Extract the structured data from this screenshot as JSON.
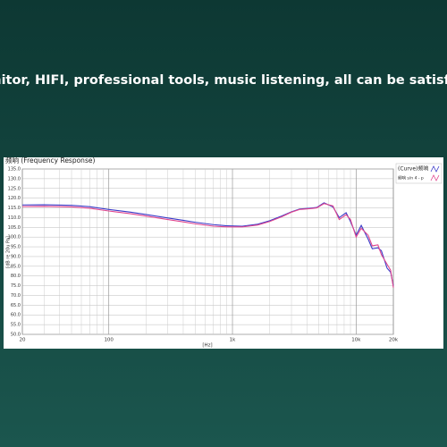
{
  "headline": "Monitor, HIFI, professional tools, music listening, all can be satisfied.",
  "chart_data": {
    "type": "line",
    "title": "频响 (Frequency Response)",
    "x_label": "[Hz]",
    "y_label": "[dB re 20u Pa]",
    "log_x": true,
    "grid": true,
    "x": [
      20,
      30,
      50,
      70,
      100,
      150,
      200,
      300,
      400,
      500,
      700,
      900,
      1200,
      1600,
      2000,
      2500,
      3000,
      3500,
      4200,
      4800,
      5500,
      6500,
      7300,
      8300,
      9000,
      10000,
      11000,
      12500,
      13500,
      15000,
      16000,
      17800,
      19000,
      20000
    ],
    "series": [
      {
        "name": "(Curve)频响",
        "color": "#3a3ac8",
        "values": [
          116.5,
          116.6,
          116.3,
          115.6,
          114.2,
          112.8,
          111.6,
          109.8,
          108.6,
          107.6,
          106.4,
          105.8,
          105.6,
          106.6,
          108.4,
          110.8,
          113,
          114.4,
          114.8,
          115.2,
          117.6,
          115.5,
          110,
          112.5,
          108,
          101,
          106,
          99,
          94,
          94.5,
          93,
          84,
          82,
          75
        ]
      },
      {
        "name": "频响 s/n 4 - p",
        "color": "#e0468e",
        "values": [
          115.7,
          115.8,
          115.5,
          114.8,
          113.4,
          112,
          110.8,
          109,
          107.8,
          106.8,
          105.6,
          105.2,
          105.2,
          106.2,
          108,
          110.4,
          112.8,
          114.2,
          114.6,
          115,
          117.2,
          116,
          109,
          111.5,
          109,
          100,
          104.5,
          101,
          95.5,
          96,
          91,
          86,
          83,
          74
        ]
      }
    ],
    "xlim": [
      20,
      20000
    ],
    "xticks": [
      20,
      100,
      {
        "value": 1000,
        "label": "1k"
      },
      {
        "value": 10000,
        "label": "10k"
      },
      {
        "value": 20000,
        "label": "20k"
      }
    ],
    "xminor": [
      30,
      40,
      50,
      60,
      70,
      80,
      90,
      200,
      300,
      400,
      500,
      600,
      700,
      800,
      900,
      2000,
      3000,
      4000,
      5000,
      6000,
      7000,
      8000,
      9000
    ],
    "ylim": [
      50,
      135
    ],
    "yticks": [
      {
        "value": 50,
        "label": "50.0"
      },
      {
        "value": 55,
        "label": "55.0"
      },
      {
        "value": 60,
        "label": "60.0"
      },
      {
        "value": 65,
        "label": "65.0"
      },
      {
        "value": 70,
        "label": "70.0"
      },
      {
        "value": 75,
        "label": "75.0"
      },
      {
        "value": 80,
        "label": "80.0"
      },
      {
        "value": 85,
        "label": "85.0"
      },
      {
        "value": 90,
        "label": "90.0"
      },
      {
        "value": 95,
        "label": "95.0"
      },
      {
        "value": 100,
        "label": "100.0"
      },
      {
        "value": 105,
        "label": "105.0"
      },
      {
        "value": 110,
        "label": "110.0"
      },
      {
        "value": 115,
        "label": "115.0"
      },
      {
        "value": 120,
        "label": "120.0"
      },
      {
        "value": 125,
        "label": "125.0"
      },
      {
        "value": 130,
        "label": "130.0"
      },
      {
        "value": 135,
        "label": "135.0"
      }
    ]
  }
}
